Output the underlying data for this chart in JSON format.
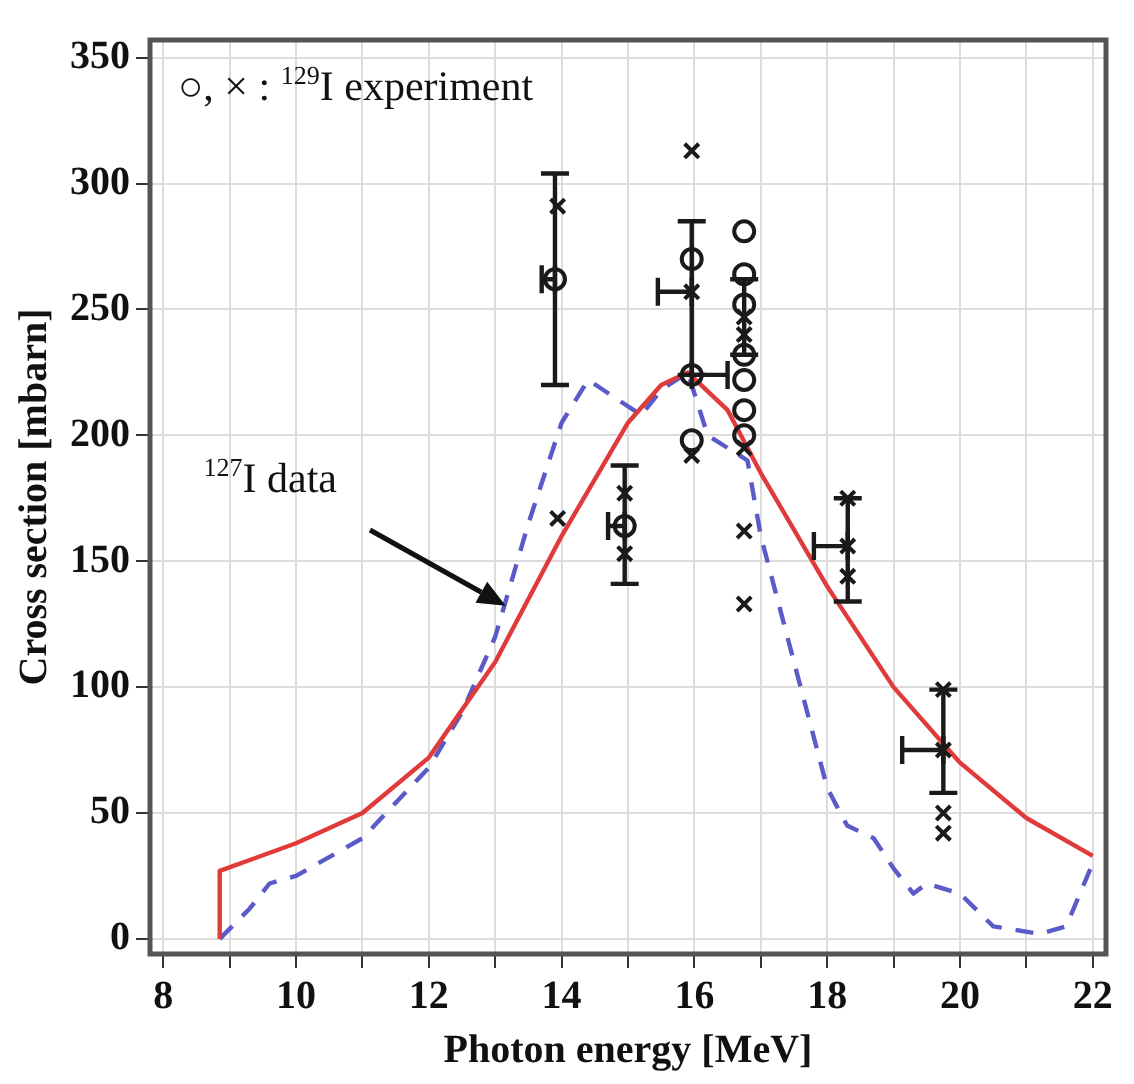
{
  "chart_data": {
    "type": "scatter",
    "xlabel": "Photon energy [MeV]",
    "ylabel": "Cross section [mbarn]",
    "xlim": [
      7.8,
      22.2
    ],
    "ylim": [
      -6,
      357
    ],
    "xticks": [
      8,
      {
        "value": 9,
        "label": null
      },
      10,
      {
        "value": 11,
        "label": null
      },
      12,
      {
        "value": 13,
        "label": null
      },
      14,
      {
        "value": 15,
        "label": null
      },
      16,
      {
        "value": 17,
        "label": null
      },
      18,
      {
        "value": 19,
        "label": null
      },
      20,
      {
        "value": 21,
        "label": null
      },
      22
    ],
    "yticks": [
      0,
      50,
      100,
      150,
      200,
      250,
      300,
      350
    ],
    "grid": true,
    "legend": false,
    "annotations": [
      "○, × : $^{129}$I experiment",
      "$^{127}$I data"
    ],
    "series": [
      {
        "type": "line",
        "color": "#e03a3a",
        "marker": "none",
        "line_style": "solid",
        "x": [
          8.85,
          8.85,
          10,
          11,
          12,
          13,
          14,
          15,
          15.5,
          15.9,
          16.5,
          17,
          18,
          19,
          20,
          21,
          22
        ],
        "values": [
          0,
          27,
          38,
          50,
          72,
          110,
          160,
          205,
          220,
          225,
          210,
          185,
          140,
          100,
          70,
          48,
          33
        ]
      },
      {
        "type": "line",
        "color": "#5a5ac8",
        "marker": "none",
        "line_style": "dashed",
        "x": [
          8.85,
          9.3,
          9.6,
          10,
          11,
          12,
          12.5,
          13,
          13.5,
          14,
          14.4,
          14.8,
          15.2,
          15.5,
          15.9,
          16.2,
          16.5,
          16.8,
          17,
          17.5,
          18,
          18.3,
          18.7,
          19,
          19.3,
          19.5,
          20,
          20.5,
          21.2,
          21.6,
          22
        ],
        "values": [
          0,
          12,
          22,
          25,
          40,
          68,
          90,
          120,
          165,
          205,
          222,
          215,
          208,
          218,
          225,
          200,
          195,
          190,
          160,
          110,
          60,
          45,
          40,
          28,
          18,
          22,
          18,
          5,
          2,
          5,
          30
        ]
      },
      {
        "type": "scatter",
        "color": "#1a1a1a",
        "marker": "circle",
        "x": [
          13.9,
          14.95,
          15.96,
          15.96,
          15.96,
          16.75,
          16.75,
          16.75,
          16.75,
          16.75,
          16.75,
          16.75
        ],
        "values": [
          262,
          164,
          270,
          224,
          198,
          281,
          264,
          252,
          232,
          222,
          210,
          200
        ],
        "errors": [
          [
            220,
            304
          ],
          [
            141,
            188
          ],
          null,
          null,
          null,
          null,
          null,
          null,
          null,
          null,
          null,
          null
        ],
        "xerrors": [
          [
            13.7,
            13.9
          ],
          [
            14.7,
            14.95
          ],
          null,
          [
            15.96,
            16.5
          ],
          null,
          null,
          null,
          null,
          null,
          null,
          null,
          null
        ]
      },
      {
        "type": "scatter",
        "color": "#1a1a1a",
        "marker": "cross",
        "x": [
          13.94,
          13.94,
          14.95,
          14.95,
          15.96,
          15.96,
          15.96,
          16.75,
          16.75,
          16.75,
          16.75,
          16.75,
          18.31,
          18.31,
          18.31,
          19.75,
          19.75,
          19.75,
          19.75
        ],
        "values": [
          291,
          167,
          177,
          153,
          313,
          257,
          192,
          247,
          240,
          195,
          162,
          133,
          175,
          156,
          144,
          99,
          75,
          50,
          42
        ],
        "errors": [
          null,
          null,
          null,
          null,
          null,
          [
            224,
            285
          ],
          null,
          [
            232,
            262
          ],
          null,
          null,
          null,
          null,
          null,
          [
            134,
            175
          ],
          null,
          null,
          [
            58,
            99
          ],
          null,
          null
        ],
        "xerrors": [
          null,
          null,
          null,
          null,
          null,
          [
            15.45,
            15.96
          ],
          null,
          null,
          null,
          null,
          null,
          null,
          null,
          [
            17.8,
            18.31
          ],
          null,
          null,
          [
            19.13,
            19.75
          ],
          null,
          null
        ]
      }
    ]
  }
}
